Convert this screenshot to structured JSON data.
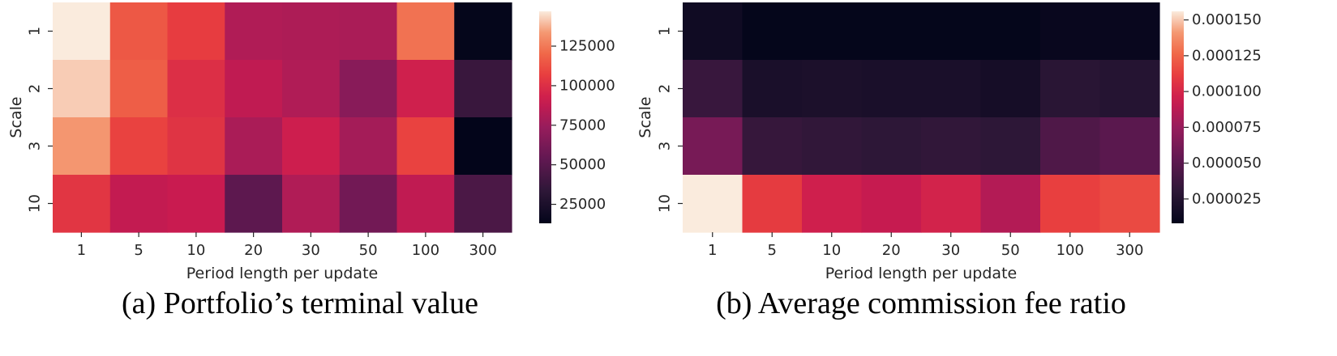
{
  "chart_data": [
    {
      "type": "heatmap",
      "caption": "(a) Portfolio’s terminal value",
      "xlabel": "Period length per update",
      "ylabel": "Scale",
      "x": [
        "1",
        "5",
        "10",
        "20",
        "30",
        "50",
        "100",
        "300"
      ],
      "y": [
        "1",
        "2",
        "3",
        "10"
      ],
      "values": [
        [
          147000,
          115000,
          106000,
          82000,
          81000,
          80000,
          123000,
          14000
        ],
        [
          142000,
          117000,
          100000,
          87000,
          82000,
          68000,
          93000,
          38000
        ],
        [
          133000,
          108000,
          102000,
          80000,
          92000,
          78000,
          108000,
          13000
        ],
        [
          103000,
          88000,
          90000,
          52000,
          82000,
          60000,
          87000,
          45000
        ]
      ],
      "colorbar": {
        "min": 13000,
        "max": 147000,
        "ticks": [
          25000,
          50000,
          75000,
          100000,
          125000
        ],
        "tick_labels": [
          "25000",
          "50000",
          "75000",
          "100000",
          "125000"
        ]
      },
      "colormap": "rocket"
    },
    {
      "type": "heatmap",
      "caption": "(b) Average commission fee ratio",
      "xlabel": "Period length per update",
      "ylabel": "Scale",
      "x": [
        "1",
        "5",
        "10",
        "20",
        "30",
        "50",
        "100",
        "300"
      ],
      "y": [
        "1",
        "2",
        "3",
        "10"
      ],
      "values": [
        [
          1.5e-05,
          9e-06,
          9e-06,
          9e-06,
          9e-06,
          9e-06,
          1.1e-05,
          1.1e-05
        ],
        [
          3.5e-05,
          2e-05,
          2.1e-05,
          2e-05,
          2e-05,
          1.8e-05,
          2.8e-05,
          2.6e-05
        ],
        [
          6.2e-05,
          3.4e-05,
          3.2e-05,
          3e-05,
          3.2e-05,
          3e-05,
          4.5e-05,
          5e-05
        ],
        [
          0.000156,
          0.00011,
          9.6e-05,
          9.2e-05,
          9.8e-05,
          8.5e-05,
          0.000112,
          0.000116
        ]
      ],
      "colorbar": {
        "min": 8e-06,
        "max": 0.000156,
        "ticks": [
          2.5e-05,
          5e-05,
          7.5e-05,
          0.0001,
          0.000125,
          0.00015
        ],
        "tick_labels": [
          "0.000025",
          "0.000050",
          "0.000075",
          "0.000100",
          "0.000125",
          "0.000150"
        ]
      },
      "colormap": "rocket"
    }
  ]
}
